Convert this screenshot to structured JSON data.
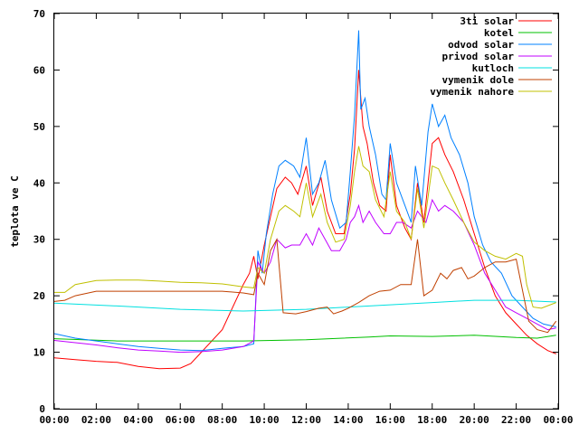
{
  "chart_data": {
    "type": "line",
    "title": "",
    "xlabel": "",
    "ylabel": "teplota ve C",
    "x_ticks": [
      "00:00",
      "02:00",
      "04:00",
      "06:00",
      "08:00",
      "10:00",
      "12:00",
      "14:00",
      "16:00",
      "18:00",
      "20:00",
      "22:00",
      "00:00"
    ],
    "x_range_hours": [
      0,
      24
    ],
    "ylim": [
      0,
      70
    ],
    "y_ticks": [
      0,
      10,
      20,
      30,
      40,
      50,
      60,
      70
    ],
    "grid": false,
    "legend_position": "top-right",
    "series": [
      {
        "name": "3ti solar",
        "color": "#ff0000",
        "points": [
          [
            0,
            9
          ],
          [
            1,
            8.7
          ],
          [
            2,
            8.4
          ],
          [
            3,
            8.2
          ],
          [
            4,
            7.5
          ],
          [
            5,
            7.1
          ],
          [
            6,
            7.2
          ],
          [
            6.5,
            8
          ],
          [
            7,
            10
          ],
          [
            8,
            14
          ],
          [
            9,
            22
          ],
          [
            9.3,
            24
          ],
          [
            9.5,
            27
          ],
          [
            9.7,
            23
          ],
          [
            10,
            29
          ],
          [
            10.3,
            34
          ],
          [
            10.6,
            39
          ],
          [
            11,
            41
          ],
          [
            11.3,
            40
          ],
          [
            11.6,
            38
          ],
          [
            12,
            43
          ],
          [
            12.3,
            36
          ],
          [
            12.7,
            41
          ],
          [
            13,
            35
          ],
          [
            13.4,
            31
          ],
          [
            13.8,
            31
          ],
          [
            14.1,
            38
          ],
          [
            14.3,
            46
          ],
          [
            14.5,
            60
          ],
          [
            14.7,
            50
          ],
          [
            14.9,
            47
          ],
          [
            15.2,
            40
          ],
          [
            15.5,
            36
          ],
          [
            15.8,
            35
          ],
          [
            16,
            45
          ],
          [
            16.3,
            36
          ],
          [
            16.7,
            32
          ],
          [
            17,
            30
          ],
          [
            17.3,
            40
          ],
          [
            17.6,
            33
          ],
          [
            18,
            47
          ],
          [
            18.3,
            48
          ],
          [
            18.6,
            45
          ],
          [
            19,
            42
          ],
          [
            19.5,
            37
          ],
          [
            20,
            31
          ],
          [
            20.5,
            25
          ],
          [
            21,
            20
          ],
          [
            21.5,
            17
          ],
          [
            22,
            15
          ],
          [
            22.5,
            13
          ],
          [
            23,
            11.5
          ],
          [
            23.5,
            10.3
          ],
          [
            23.9,
            9.7
          ]
        ]
      },
      {
        "name": "kotel",
        "color": "#00c000",
        "points": [
          [
            0,
            12.4
          ],
          [
            3,
            12
          ],
          [
            6,
            12
          ],
          [
            9,
            12
          ],
          [
            12,
            12.2
          ],
          [
            15,
            12.7
          ],
          [
            16,
            12.9
          ],
          [
            18,
            12.8
          ],
          [
            20,
            13
          ],
          [
            22,
            12.6
          ],
          [
            23,
            12.5
          ],
          [
            23.9,
            13
          ]
        ]
      },
      {
        "name": "odvod solar",
        "color": "#0080ff",
        "points": [
          [
            0,
            13.3
          ],
          [
            1,
            12.5
          ],
          [
            2,
            12
          ],
          [
            3,
            11.5
          ],
          [
            4,
            11
          ],
          [
            5,
            10.7
          ],
          [
            6,
            10.4
          ],
          [
            7,
            10.3
          ],
          [
            8,
            10.7
          ],
          [
            9,
            11
          ],
          [
            9.5,
            11.5
          ],
          [
            9.7,
            28
          ],
          [
            9.9,
            24
          ],
          [
            10.1,
            31
          ],
          [
            10.4,
            38
          ],
          [
            10.7,
            43
          ],
          [
            11,
            44
          ],
          [
            11.4,
            43
          ],
          [
            11.7,
            41
          ],
          [
            12,
            48
          ],
          [
            12.3,
            38
          ],
          [
            12.6,
            40
          ],
          [
            12.9,
            44
          ],
          [
            13.2,
            37
          ],
          [
            13.6,
            32
          ],
          [
            13.9,
            33
          ],
          [
            14.1,
            42
          ],
          [
            14.3,
            52
          ],
          [
            14.5,
            67
          ],
          [
            14.6,
            53
          ],
          [
            14.8,
            55
          ],
          [
            15,
            50
          ],
          [
            15.3,
            45
          ],
          [
            15.6,
            38
          ],
          [
            15.8,
            37
          ],
          [
            16,
            47
          ],
          [
            16.3,
            40
          ],
          [
            16.7,
            36
          ],
          [
            17,
            33
          ],
          [
            17.2,
            43
          ],
          [
            17.5,
            36
          ],
          [
            17.8,
            49
          ],
          [
            18,
            54
          ],
          [
            18.3,
            50
          ],
          [
            18.6,
            52
          ],
          [
            18.9,
            48
          ],
          [
            19.3,
            45
          ],
          [
            19.7,
            40
          ],
          [
            20,
            34
          ],
          [
            20.4,
            29
          ],
          [
            20.8,
            26
          ],
          [
            21.3,
            24
          ],
          [
            21.8,
            20
          ],
          [
            22.3,
            18
          ],
          [
            22.8,
            16
          ],
          [
            23.3,
            15
          ],
          [
            23.9,
            14.5
          ]
        ]
      },
      {
        "name": "privod solar",
        "color": "#c000ff",
        "points": [
          [
            0,
            12.1
          ],
          [
            1,
            11.7
          ],
          [
            2,
            11.3
          ],
          [
            3,
            10.8
          ],
          [
            4,
            10.4
          ],
          [
            5,
            10.2
          ],
          [
            6,
            10
          ],
          [
            7,
            10.1
          ],
          [
            8,
            10.4
          ],
          [
            9,
            11
          ],
          [
            9.5,
            12
          ],
          [
            9.7,
            26
          ],
          [
            10,
            24
          ],
          [
            10.3,
            26
          ],
          [
            10.6,
            30
          ],
          [
            11,
            28.5
          ],
          [
            11.3,
            29
          ],
          [
            11.7,
            29
          ],
          [
            12,
            31
          ],
          [
            12.3,
            29
          ],
          [
            12.6,
            32
          ],
          [
            12.9,
            30
          ],
          [
            13.2,
            28
          ],
          [
            13.6,
            28
          ],
          [
            13.9,
            30
          ],
          [
            14.1,
            33
          ],
          [
            14.3,
            34
          ],
          [
            14.5,
            36
          ],
          [
            14.7,
            33
          ],
          [
            15,
            35
          ],
          [
            15.3,
            33
          ],
          [
            15.7,
            31
          ],
          [
            16,
            31
          ],
          [
            16.3,
            33
          ],
          [
            16.6,
            33
          ],
          [
            17,
            32
          ],
          [
            17.3,
            35
          ],
          [
            17.7,
            33
          ],
          [
            18,
            37
          ],
          [
            18.3,
            35
          ],
          [
            18.6,
            36
          ],
          [
            19,
            35
          ],
          [
            19.5,
            33
          ],
          [
            20,
            29
          ],
          [
            20.5,
            24
          ],
          [
            21,
            21
          ],
          [
            21.5,
            18
          ],
          [
            22,
            17
          ],
          [
            22.5,
            16
          ],
          [
            23,
            15
          ],
          [
            23.5,
            14
          ],
          [
            23.9,
            14.3
          ]
        ]
      },
      {
        "name": "kutloch",
        "color": "#00e0e0",
        "points": [
          [
            0,
            18.7
          ],
          [
            3,
            18.2
          ],
          [
            6,
            17.6
          ],
          [
            9,
            17.3
          ],
          [
            12,
            17.6
          ],
          [
            15,
            18.2
          ],
          [
            18,
            18.8
          ],
          [
            20,
            19.2
          ],
          [
            22,
            19.2
          ],
          [
            23.9,
            18.9
          ]
        ]
      },
      {
        "name": "vymenik dole",
        "color": "#c04000",
        "points": [
          [
            0,
            19
          ],
          [
            0.5,
            19.2
          ],
          [
            1,
            20
          ],
          [
            2,
            20.8
          ],
          [
            4,
            20.8
          ],
          [
            6,
            20.8
          ],
          [
            8,
            20.8
          ],
          [
            9,
            20.5
          ],
          [
            9.5,
            20.2
          ],
          [
            9.7,
            24
          ],
          [
            10,
            22
          ],
          [
            10.3,
            28
          ],
          [
            10.6,
            30
          ],
          [
            10.9,
            17
          ],
          [
            11.5,
            16.8
          ],
          [
            12,
            17.2
          ],
          [
            12.6,
            17.8
          ],
          [
            13,
            18
          ],
          [
            13.3,
            16.8
          ],
          [
            13.7,
            17.3
          ],
          [
            14,
            17.8
          ],
          [
            14.5,
            18.8
          ],
          [
            15,
            20
          ],
          [
            15.5,
            20.8
          ],
          [
            16,
            21
          ],
          [
            16.5,
            22
          ],
          [
            17,
            22
          ],
          [
            17.3,
            30
          ],
          [
            17.6,
            20
          ],
          [
            18,
            21
          ],
          [
            18.4,
            24
          ],
          [
            18.7,
            23
          ],
          [
            19,
            24.5
          ],
          [
            19.4,
            25
          ],
          [
            19.7,
            23
          ],
          [
            20,
            23.5
          ],
          [
            20.5,
            25
          ],
          [
            21,
            26
          ],
          [
            21.5,
            26
          ],
          [
            22,
            26.5
          ],
          [
            22.3,
            21
          ],
          [
            22.6,
            15.5
          ],
          [
            23,
            14
          ],
          [
            23.5,
            13.5
          ],
          [
            23.9,
            15.5
          ]
        ]
      },
      {
        "name": "vymenik nahore",
        "color": "#c0c000",
        "points": [
          [
            0,
            20.6
          ],
          [
            0.5,
            20.6
          ],
          [
            1,
            22
          ],
          [
            2,
            22.7
          ],
          [
            3,
            22.8
          ],
          [
            4,
            22.8
          ],
          [
            5,
            22.6
          ],
          [
            6,
            22.4
          ],
          [
            7,
            22.3
          ],
          [
            8,
            22.1
          ],
          [
            9,
            21.6
          ],
          [
            9.5,
            21.4
          ],
          [
            9.7,
            25
          ],
          [
            10,
            24
          ],
          [
            10.3,
            30
          ],
          [
            10.7,
            35
          ],
          [
            11,
            36
          ],
          [
            11.4,
            35
          ],
          [
            11.7,
            34
          ],
          [
            12,
            40
          ],
          [
            12.3,
            34
          ],
          [
            12.7,
            38
          ],
          [
            13,
            33
          ],
          [
            13.4,
            29.5
          ],
          [
            13.8,
            30
          ],
          [
            14.1,
            36
          ],
          [
            14.3,
            42
          ],
          [
            14.5,
            46.5
          ],
          [
            14.7,
            43
          ],
          [
            15,
            42
          ],
          [
            15.3,
            37
          ],
          [
            15.7,
            34
          ],
          [
            16,
            42
          ],
          [
            16.3,
            35
          ],
          [
            16.7,
            33
          ],
          [
            17,
            30
          ],
          [
            17.3,
            39
          ],
          [
            17.6,
            32
          ],
          [
            18,
            43
          ],
          [
            18.3,
            42.5
          ],
          [
            18.6,
            40
          ],
          [
            19,
            37
          ],
          [
            19.5,
            33
          ],
          [
            20,
            29.5
          ],
          [
            20.5,
            28
          ],
          [
            21,
            27
          ],
          [
            21.5,
            26.5
          ],
          [
            22,
            27.5
          ],
          [
            22.3,
            27
          ],
          [
            22.5,
            22
          ],
          [
            22.8,
            18
          ],
          [
            23.2,
            17.8
          ],
          [
            23.9,
            18.8
          ]
        ]
      }
    ]
  }
}
